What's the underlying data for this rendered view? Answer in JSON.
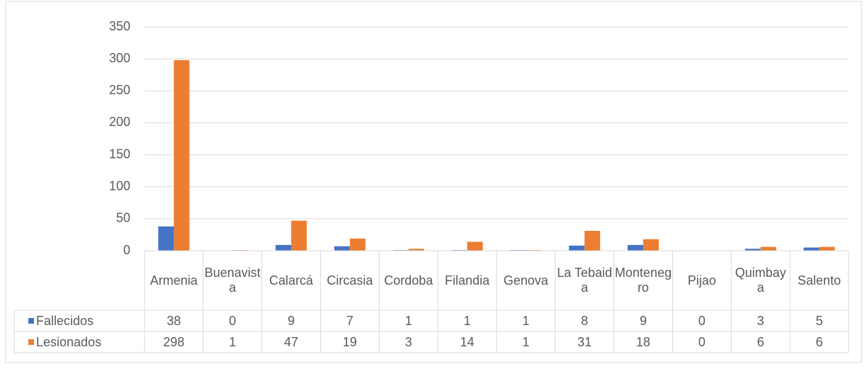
{
  "chart_data": {
    "type": "bar",
    "categories": [
      "Armenia",
      "Buenavista",
      "Calarcá",
      "Circasia",
      "Cordoba",
      "Filandia",
      "Genova",
      "La Tebaida",
      "Montenegro",
      "Pijao",
      "Quimbaya",
      "Salento"
    ],
    "series": [
      {
        "name": "Fallecidos",
        "color": "#4472c4",
        "values": [
          38,
          0,
          9,
          7,
          1,
          1,
          1,
          8,
          9,
          0,
          3,
          5
        ]
      },
      {
        "name": "Lesionados",
        "color": "#ed7d31",
        "values": [
          298,
          1,
          47,
          19,
          3,
          14,
          1,
          31,
          18,
          0,
          6,
          6
        ]
      }
    ],
    "ylim": [
      0,
      350
    ],
    "yticks": [
      0,
      50,
      100,
      150,
      200,
      250,
      300,
      350
    ],
    "grid": true,
    "data_table": true
  }
}
